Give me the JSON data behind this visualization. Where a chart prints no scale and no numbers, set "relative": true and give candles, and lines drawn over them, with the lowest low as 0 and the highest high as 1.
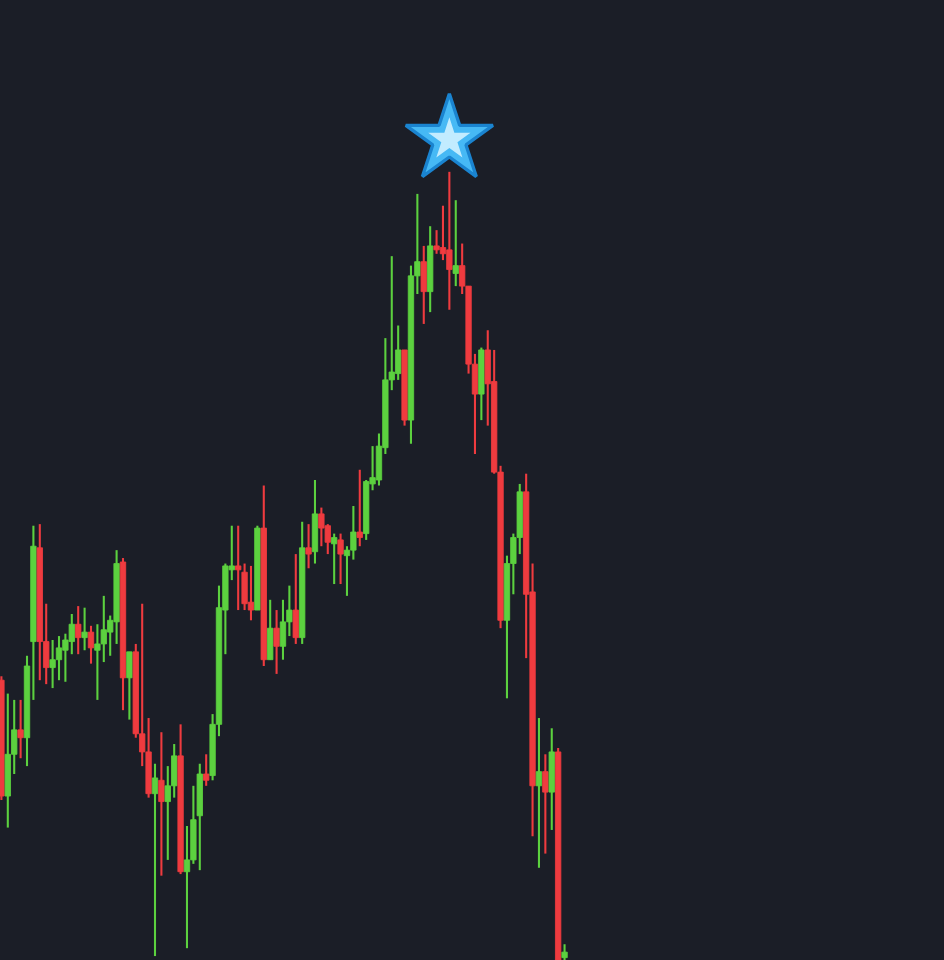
{
  "chart_data": {
    "type": "candlestick",
    "relative": true,
    "categories": [
      null,
      null,
      null,
      null,
      null,
      null,
      null,
      null,
      null,
      null,
      null,
      null,
      null,
      null,
      null,
      null,
      null,
      null,
      null,
      null,
      null,
      null,
      null,
      null,
      null,
      null,
      null,
      null,
      null,
      null,
      null,
      null,
      null,
      null,
      null,
      null,
      null,
      null,
      null,
      null,
      null,
      null,
      null,
      null,
      null,
      null,
      null,
      null,
      null,
      null,
      null,
      null,
      null,
      null,
      null,
      null,
      null,
      null,
      null,
      null,
      null,
      null,
      null,
      null,
      null,
      null,
      null,
      null,
      null,
      null,
      null,
      null,
      null,
      null,
      null,
      null,
      null,
      null,
      null,
      null,
      null,
      null,
      null,
      null,
      null,
      null,
      null,
      null,
      null
    ],
    "ohlc": [
      [
        0.355,
        0.36,
        0.203,
        0.208
      ],
      [
        0.208,
        0.338,
        0.168,
        0.261
      ],
      [
        0.261,
        0.33,
        0.236,
        0.292
      ],
      [
        0.292,
        0.33,
        0.256,
        0.282
      ],
      [
        0.282,
        0.386,
        0.246,
        0.373
      ],
      [
        0.404,
        0.551,
        0.33,
        0.525
      ],
      [
        0.523,
        0.553,
        0.355,
        0.404
      ],
      [
        0.404,
        0.452,
        0.35,
        0.371
      ],
      [
        0.371,
        0.406,
        0.345,
        0.381
      ],
      [
        0.381,
        0.411,
        0.355,
        0.396
      ],
      [
        0.393,
        0.414,
        0.353,
        0.406
      ],
      [
        0.404,
        0.439,
        0.388,
        0.426
      ],
      [
        0.426,
        0.449,
        0.388,
        0.409
      ],
      [
        0.409,
        0.447,
        0.393,
        0.416
      ],
      [
        0.416,
        0.424,
        0.376,
        0.396
      ],
      [
        0.393,
        0.426,
        0.33,
        0.401
      ],
      [
        0.401,
        0.462,
        0.378,
        0.419
      ],
      [
        0.416,
        0.437,
        0.386,
        0.431
      ],
      [
        0.429,
        0.52,
        0.401,
        0.503
      ],
      [
        0.505,
        0.51,
        0.317,
        0.358
      ],
      [
        0.358,
        0.391,
        0.305,
        0.391
      ],
      [
        0.391,
        0.401,
        0.282,
        0.287
      ],
      [
        0.287,
        0.452,
        0.246,
        0.264
      ],
      [
        0.264,
        0.307,
        0.206,
        0.211
      ],
      [
        0.211,
        0.249,
        0.005,
        0.231
      ],
      [
        0.228,
        0.289,
        0.107,
        0.201
      ],
      [
        0.201,
        0.246,
        0.127,
        0.221
      ],
      [
        0.221,
        0.274,
        0.206,
        0.259
      ],
      [
        0.259,
        0.299,
        0.109,
        0.112
      ],
      [
        0.112,
        0.17,
        0.015,
        0.127
      ],
      [
        0.127,
        0.221,
        0.122,
        0.178
      ],
      [
        0.183,
        0.249,
        0.114,
        0.236
      ],
      [
        0.236,
        0.261,
        0.221,
        0.228
      ],
      [
        0.234,
        0.312,
        0.228,
        0.299
      ],
      [
        0.299,
        0.475,
        0.284,
        0.447
      ],
      [
        0.444,
        0.503,
        0.388,
        0.5
      ],
      [
        0.495,
        0.551,
        0.482,
        0.5
      ],
      [
        0.5,
        0.551,
        0.444,
        0.495
      ],
      [
        0.492,
        0.503,
        0.444,
        0.452
      ],
      [
        0.454,
        0.5,
        0.431,
        0.444
      ],
      [
        0.444,
        0.551,
        0.444,
        0.548
      ],
      [
        0.548,
        0.602,
        0.373,
        0.381
      ],
      [
        0.381,
        0.457,
        0.381,
        0.421
      ],
      [
        0.421,
        0.444,
        0.363,
        0.398
      ],
      [
        0.398,
        0.457,
        0.381,
        0.429
      ],
      [
        0.429,
        0.475,
        0.411,
        0.444
      ],
      [
        0.444,
        0.515,
        0.401,
        0.409
      ],
      [
        0.409,
        0.556,
        0.401,
        0.523
      ],
      [
        0.523,
        0.553,
        0.497,
        0.515
      ],
      [
        0.518,
        0.609,
        0.503,
        0.566
      ],
      [
        0.566,
        0.574,
        0.525,
        0.548
      ],
      [
        0.551,
        0.553,
        0.515,
        0.53
      ],
      [
        0.528,
        0.541,
        0.477,
        0.536
      ],
      [
        0.533,
        0.541,
        0.477,
        0.515
      ],
      [
        0.513,
        0.525,
        0.462,
        0.52
      ],
      [
        0.52,
        0.576,
        0.508,
        0.543
      ],
      [
        0.543,
        0.622,
        0.525,
        0.536
      ],
      [
        0.541,
        0.609,
        0.533,
        0.607
      ],
      [
        0.604,
        0.652,
        0.596,
        0.612
      ],
      [
        0.609,
        0.668,
        0.602,
        0.652
      ],
      [
        0.65,
        0.789,
        0.642,
        0.736
      ],
      [
        0.736,
        0.893,
        0.723,
        0.746
      ],
      [
        0.744,
        0.805,
        0.736,
        0.774
      ],
      [
        0.774,
        0.774,
        0.678,
        0.685
      ],
      [
        0.685,
        0.881,
        0.655,
        0.868
      ],
      [
        0.868,
        0.972,
        0.845,
        0.886
      ],
      [
        0.886,
        0.906,
        0.807,
        0.848
      ],
      [
        0.848,
        0.931,
        0.822,
        0.906
      ],
      [
        0.906,
        0.926,
        0.896,
        0.901
      ],
      [
        0.904,
        0.957,
        0.888,
        0.896
      ],
      [
        0.901,
        1,
        0.825,
        0.876
      ],
      [
        0.871,
        0.964,
        0.855,
        0.881
      ],
      [
        0.881,
        0.909,
        0.845,
        0.855
      ],
      [
        0.855,
        0.855,
        0.744,
        0.756
      ],
      [
        0.756,
        0.769,
        0.642,
        0.718
      ],
      [
        0.718,
        0.777,
        0.685,
        0.774
      ],
      [
        0.774,
        0.799,
        0.678,
        0.731
      ],
      [
        0.734,
        0.774,
        0.617,
        0.619
      ],
      [
        0.619,
        0.627,
        0.421,
        0.431
      ],
      [
        0.431,
        0.513,
        0.332,
        0.503
      ],
      [
        0.503,
        0.541,
        0.464,
        0.536
      ],
      [
        0.536,
        0.604,
        0.515,
        0.594
      ],
      [
        0.594,
        0.617,
        0.383,
        0.464
      ],
      [
        0.467,
        0.503,
        0.157,
        0.221
      ],
      [
        0.221,
        0.307,
        0.117,
        0.239
      ],
      [
        0.239,
        0.261,
        0.135,
        0.213
      ],
      [
        0.213,
        0.294,
        0.165,
        0.264
      ],
      [
        0.264,
        0.269,
        0,
        0
      ],
      [
        0.003,
        0.02,
        0,
        0.01
      ]
    ],
    "colors": [
      "#ef3b3f",
      "#5cd13f",
      "#5cd13f",
      "#ef3b3f",
      "#5cd13f",
      "#5cd13f",
      "#ef3b3f",
      "#ef3b3f",
      "#5cd13f",
      "#5cd13f",
      "#5cd13f",
      "#5cd13f",
      "#ef3b3f",
      "#5cd13f",
      "#ef3b3f",
      "#5cd13f",
      "#5cd13f",
      "#5cd13f",
      "#5cd13f",
      "#ef3b3f",
      "#5cd13f",
      "#ef3b3f",
      "#ef3b3f",
      "#ef3b3f",
      "#5cd13f",
      "#ef3b3f",
      "#5cd13f",
      "#5cd13f",
      "#ef3b3f",
      "#5cd13f",
      "#5cd13f",
      "#5cd13f",
      "#ef3b3f",
      "#5cd13f",
      "#5cd13f",
      "#5cd13f",
      "#5cd13f",
      "#ef3b3f",
      "#ef3b3f",
      "#ef3b3f",
      "#5cd13f",
      "#ef3b3f",
      "#5cd13f",
      "#ef3b3f",
      "#5cd13f",
      "#5cd13f",
      "#ef3b3f",
      "#5cd13f",
      "#ef3b3f",
      "#5cd13f",
      "#ef3b3f",
      "#ef3b3f",
      "#5cd13f",
      "#ef3b3f",
      "#5cd13f",
      "#5cd13f",
      "#ef3b3f",
      "#5cd13f",
      "#5cd13f",
      "#5cd13f",
      "#5cd13f",
      "#5cd13f",
      "#5cd13f",
      "#ef3b3f",
      "#5cd13f",
      "#5cd13f",
      "#ef3b3f",
      "#5cd13f",
      "#ef3b3f",
      "#ef3b3f",
      "#ef3b3f",
      "#5cd13f",
      "#ef3b3f",
      "#ef3b3f",
      "#ef3b3f",
      "#5cd13f",
      "#ef3b3f",
      "#ef3b3f",
      "#ef3b3f",
      "#5cd13f",
      "#5cd13f",
      "#5cd13f",
      "#ef3b3f",
      "#ef3b3f",
      "#5cd13f",
      "#ef3b3f",
      "#5cd13f",
      "#ef3b3f",
      "#5cd13f"
    ]
  }
}
